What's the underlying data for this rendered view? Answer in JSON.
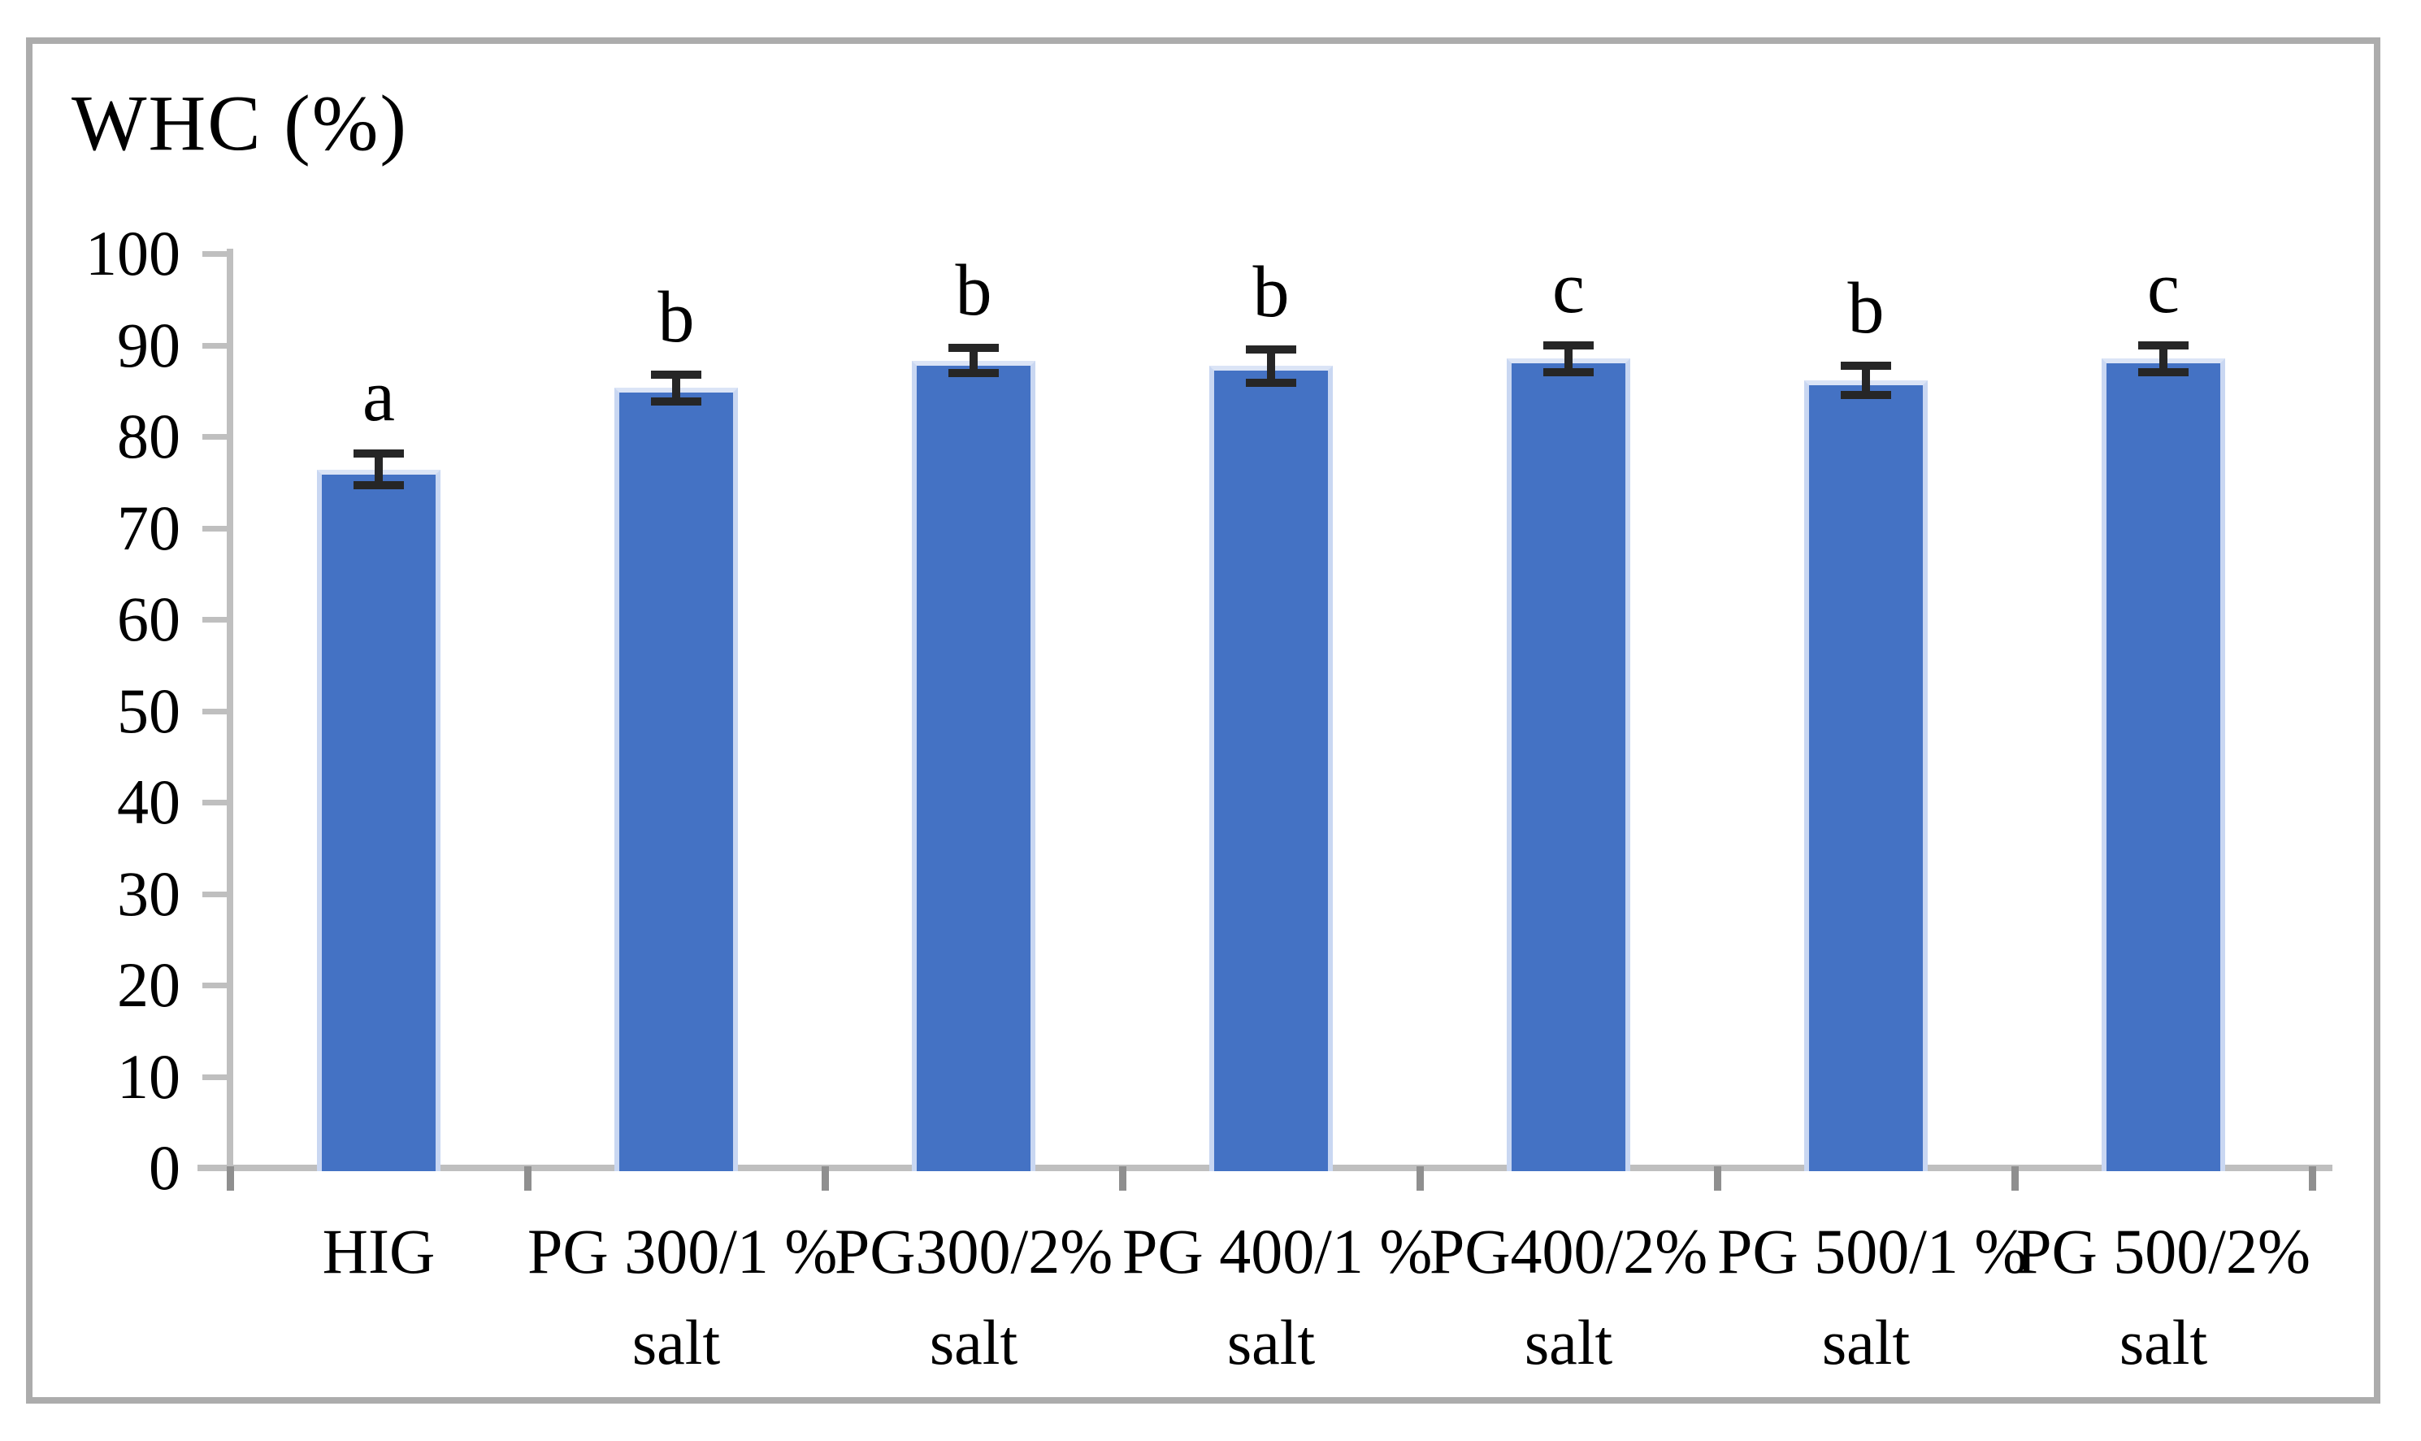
{
  "chart": {
    "title": "WHC (%)"
  },
  "chart_data": {
    "type": "bar",
    "title": "WHC (%)",
    "ylabel": "WHC (%)",
    "categories": [
      "HIG",
      "PG 300/1 % salt",
      "PG300/2% salt",
      "PG 400/1 % salt",
      "PG400/2% salt",
      "PG 500/1 % salt",
      "PG 500/2% salt"
    ],
    "x_tick_labels_line1": [
      "HIG",
      "PG 300/1 %",
      "PG300/2%",
      "PG 400/1 %",
      "PG400/2%",
      "PG 500/1 %",
      "PG 500/2%"
    ],
    "x_tick_labels_line2": [
      "",
      "salt",
      "salt",
      "salt",
      "salt",
      "salt",
      "salt"
    ],
    "values": [
      76.4,
      85.3,
      88.3,
      87.7,
      88.5,
      86.1,
      88.5
    ],
    "error_bars": [
      1.7,
      1.5,
      1.4,
      1.8,
      1.5,
      1.6,
      1.5
    ],
    "significance_letters": [
      "a",
      "b",
      "b",
      "b",
      "c",
      "b",
      "c"
    ],
    "y_ticks": [
      0,
      10,
      20,
      30,
      40,
      50,
      60,
      70,
      80,
      90,
      100
    ],
    "ylim": [
      0,
      100
    ],
    "grid": false,
    "legend": false,
    "bar_color": "#4472C4",
    "bar_border_color": "#C9D7F2",
    "error_bar_color": "#262626",
    "axis_color": "#BFBFBF",
    "frame_color": "#ACACAC",
    "text_color": "#000000"
  }
}
